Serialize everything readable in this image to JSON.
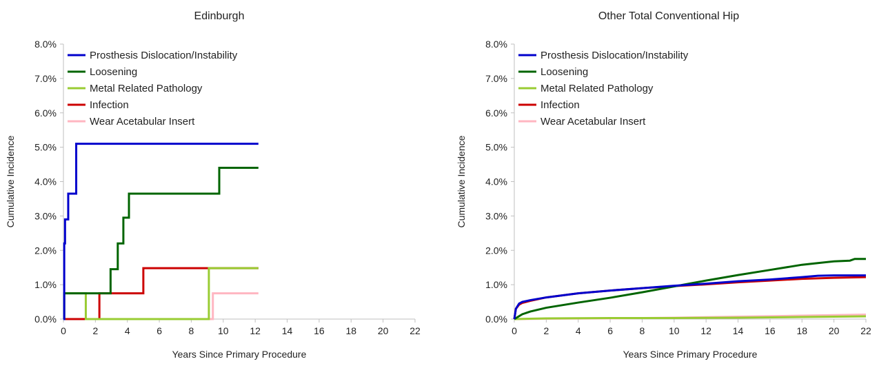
{
  "chart_data": [
    {
      "type": "line",
      "title": "Edinburgh",
      "xlabel": "Years Since Primary Procedure",
      "ylabel": "Cumulative Incidence",
      "xlim": [
        0,
        22
      ],
      "ylim": [
        0,
        8
      ],
      "x_ticks": [
        "0",
        "2",
        "4",
        "6",
        "8",
        "10",
        "12",
        "14",
        "16",
        "18",
        "20",
        "22"
      ],
      "y_ticks": [
        "0.0%",
        "1.0%",
        "2.0%",
        "3.0%",
        "4.0%",
        "5.0%",
        "6.0%",
        "7.0%",
        "8.0%"
      ],
      "grid": false,
      "legend_position": "top-left",
      "step": true,
      "series": [
        {
          "name": "Prosthesis Dislocation/Instability",
          "color": "#0000cc",
          "x": [
            0,
            0.05,
            0.1,
            0.25,
            0.3,
            0.75,
            0.8,
            12.2
          ],
          "y": [
            0,
            2.2,
            2.9,
            2.9,
            3.65,
            3.65,
            5.1,
            5.1
          ]
        },
        {
          "name": "Loosening",
          "color": "#006400",
          "x": [
            0,
            0.05,
            2.75,
            2.95,
            3.4,
            3.75,
            4.1,
            9.75,
            12.2
          ],
          "y": [
            0,
            0.75,
            0.75,
            1.45,
            2.2,
            2.95,
            3.65,
            4.4,
            4.4
          ]
        },
        {
          "name": "Metal Related Pathology",
          "color": "#99cc33",
          "x": [
            0,
            0.05,
            1.35,
            1.4,
            9.1,
            12.2
          ],
          "y": [
            0,
            0.75,
            0.75,
            0.0,
            1.48,
            1.48
          ]
        },
        {
          "name": "Infection",
          "color": "#cc0000",
          "x": [
            0,
            2.2,
            2.25,
            5.0,
            12.2
          ],
          "y": [
            0,
            0,
            0.75,
            1.48,
            1.48
          ]
        },
        {
          "name": "Wear Acetabular Insert",
          "color": "#ffb6c1",
          "x": [
            0,
            9.35,
            12.2
          ],
          "y": [
            0,
            0.75,
            0.75
          ]
        }
      ]
    },
    {
      "type": "line",
      "title": "Other Total Conventional Hip",
      "xlabel": "Years Since Primary Procedure",
      "ylabel": "Cumulative Incidence",
      "xlim": [
        0,
        22
      ],
      "ylim": [
        0,
        8
      ],
      "x_ticks": [
        "0",
        "2",
        "4",
        "6",
        "8",
        "10",
        "12",
        "14",
        "16",
        "18",
        "20",
        "22"
      ],
      "y_ticks": [
        "0.0%",
        "1.0%",
        "2.0%",
        "3.0%",
        "4.0%",
        "5.0%",
        "6.0%",
        "7.0%",
        "8.0%"
      ],
      "grid": false,
      "legend_position": "top-left",
      "step": false,
      "series": [
        {
          "name": "Prosthesis Dislocation/Instability",
          "color": "#0000cc",
          "x": [
            0,
            0.1,
            0.3,
            0.5,
            1,
            2,
            4,
            6,
            8,
            10,
            12,
            14,
            16,
            18,
            19,
            20,
            21,
            22
          ],
          "y": [
            0,
            0.3,
            0.45,
            0.5,
            0.55,
            0.63,
            0.75,
            0.83,
            0.9,
            0.97,
            1.03,
            1.1,
            1.15,
            1.22,
            1.26,
            1.27,
            1.27,
            1.27
          ]
        },
        {
          "name": "Loosening",
          "color": "#006400",
          "x": [
            0,
            0.5,
            1,
            2,
            4,
            6,
            8,
            10,
            12,
            14,
            16,
            18,
            20,
            21,
            21.3,
            22
          ],
          "y": [
            0,
            0.14,
            0.22,
            0.33,
            0.48,
            0.62,
            0.78,
            0.95,
            1.12,
            1.28,
            1.43,
            1.58,
            1.68,
            1.7,
            1.75,
            1.75
          ]
        },
        {
          "name": "Metal Related Pathology",
          "color": "#99cc33",
          "x": [
            0,
            2,
            6,
            10,
            14,
            18,
            22
          ],
          "y": [
            0,
            0.02,
            0.03,
            0.03,
            0.04,
            0.06,
            0.08
          ]
        },
        {
          "name": "Infection",
          "color": "#cc0000",
          "x": [
            0,
            0.1,
            0.3,
            0.5,
            1,
            2,
            4,
            6,
            8,
            10,
            12,
            14,
            16,
            18,
            20,
            22
          ],
          "y": [
            0,
            0.3,
            0.42,
            0.47,
            0.53,
            0.63,
            0.75,
            0.83,
            0.9,
            0.96,
            1.01,
            1.07,
            1.12,
            1.17,
            1.2,
            1.22
          ]
        },
        {
          "name": "Wear Acetabular Insert",
          "color": "#ffb6c1",
          "x": [
            0,
            2,
            6,
            10,
            14,
            18,
            22
          ],
          "y": [
            0,
            0.01,
            0.02,
            0.04,
            0.07,
            0.1,
            0.13
          ]
        }
      ]
    }
  ]
}
